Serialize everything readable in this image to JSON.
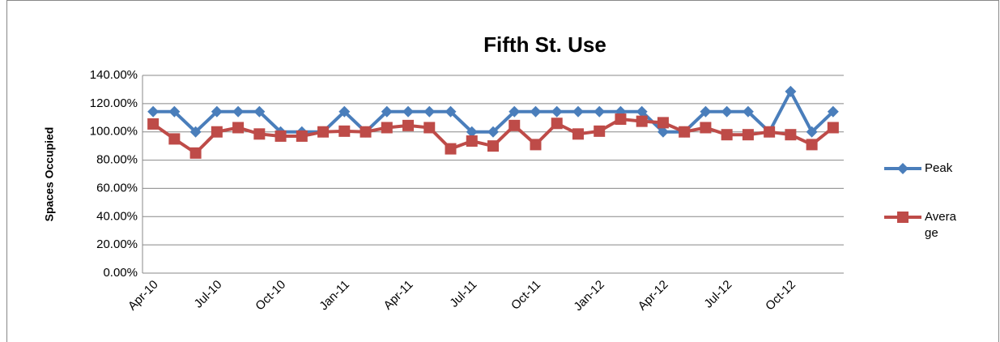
{
  "chart_data": {
    "type": "line",
    "title": "Fifth St. Use",
    "y_label": "Spaces Occupied",
    "categories": [
      "Apr-10",
      null,
      null,
      "Jul-10",
      null,
      null,
      "Oct-10",
      null,
      null,
      "Jan-11",
      null,
      null,
      "Apr-11",
      null,
      null,
      "Jul-11",
      null,
      null,
      "Oct-11",
      null,
      null,
      "Jan-12",
      null,
      null,
      "Apr-12",
      null,
      null,
      "Jul-12",
      null,
      null,
      "Oct-12",
      null,
      null
    ],
    "series": [
      {
        "name": "Peak",
        "color": "#4a7ebb",
        "marker": "diamond",
        "values": [
          114.29,
          114.29,
          100,
          114.29,
          114.29,
          114.29,
          100,
          100,
          100,
          114.29,
          100,
          114.29,
          114.29,
          114.29,
          114.29,
          100,
          100,
          114.29,
          114.29,
          114.29,
          114.29,
          114.29,
          114.29,
          114.29,
          100,
          100,
          114.29,
          114.29,
          114.29,
          100,
          128.57,
          100,
          114.29
        ]
      },
      {
        "name": "Average",
        "color": "#be4b48",
        "marker": "square",
        "values": [
          105.6,
          95,
          85,
          100,
          103,
          98.5,
          97,
          97,
          100,
          100.5,
          100,
          103,
          104.5,
          103,
          88,
          93.5,
          90,
          104.5,
          91,
          106,
          98.5,
          100.5,
          109,
          107.5,
          106.5,
          100,
          103,
          98,
          98,
          100,
          98,
          91,
          103
        ]
      }
    ],
    "ylim": [
      0,
      140
    ],
    "yticks": [
      {
        "value": 0,
        "label": "0.00%"
      },
      {
        "value": 20,
        "label": "20.00%"
      },
      {
        "value": 40,
        "label": "40.00%"
      },
      {
        "value": 60,
        "label": "60.00%"
      },
      {
        "value": 80,
        "label": "80.00%"
      },
      {
        "value": 100,
        "label": "100.00%"
      },
      {
        "value": 120,
        "label": "120.00%"
      },
      {
        "value": 140,
        "label": "140.00%"
      }
    ],
    "grid": true,
    "legend": "right"
  }
}
